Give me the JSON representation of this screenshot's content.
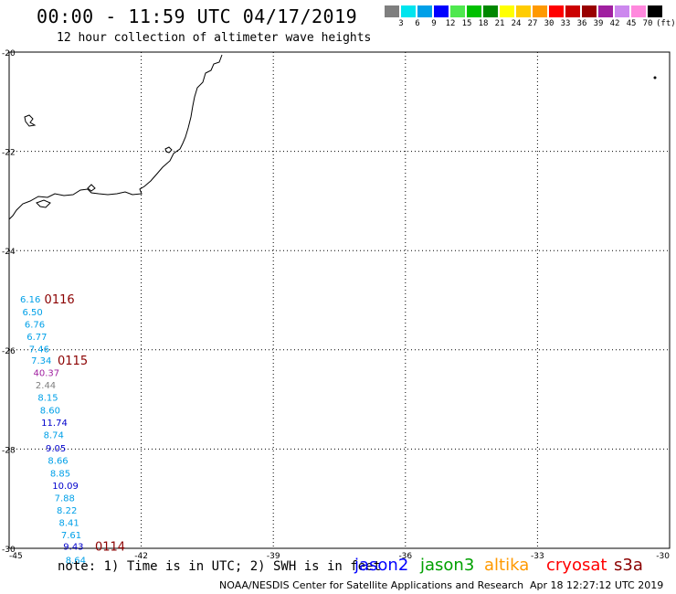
{
  "header": {
    "title": "00:00 - 11:59 UTC 04/17/2019",
    "subtitle": "12 hour collection of altimeter wave heights"
  },
  "legend": {
    "unit": "(ft)",
    "items": [
      {
        "label": "3",
        "color": "#7f7f7f"
      },
      {
        "label": "6",
        "color": "#00e5ee"
      },
      {
        "label": "9",
        "color": "#00a0e8"
      },
      {
        "label": "12",
        "color": "#0000ff"
      },
      {
        "label": "15",
        "color": "#4ee84e"
      },
      {
        "label": "18",
        "color": "#00c000"
      },
      {
        "label": "21",
        "color": "#008800"
      },
      {
        "label": "24",
        "color": "#ffff00"
      },
      {
        "label": "27",
        "color": "#ffcc00"
      },
      {
        "label": "30",
        "color": "#ff9900"
      },
      {
        "label": "33",
        "color": "#ff0000"
      },
      {
        "label": "36",
        "color": "#cc0000"
      },
      {
        "label": "39",
        "color": "#990000"
      },
      {
        "label": "42",
        "color": "#a020a0"
      },
      {
        "label": "45",
        "color": "#cc88ee"
      },
      {
        "label": "70",
        "color": "#ff88dd"
      },
      {
        "label": "",
        "color": "#000000"
      }
    ]
  },
  "axes": {
    "lat_labels": [
      "-20",
      "-22",
      "-24",
      "-26",
      "-28",
      "-30"
    ],
    "lon_labels": [
      "-45",
      "-42",
      "-39",
      "-36",
      "-33",
      "-30"
    ]
  },
  "observations": [
    {
      "lat": -25.05,
      "lon": -44.75,
      "value": "6.16",
      "color": "#00a0e8"
    },
    {
      "lat": -25.3,
      "lon": -44.7,
      "value": "6.50",
      "color": "#00a0e8"
    },
    {
      "lat": -25.55,
      "lon": -44.65,
      "value": "6.76",
      "color": "#00a0e8"
    },
    {
      "lat": -25.8,
      "lon": -44.6,
      "value": "6.77",
      "color": "#00a0e8"
    },
    {
      "lat": -26.05,
      "lon": -44.55,
      "value": "7.46",
      "color": "#00a0e8"
    },
    {
      "lat": -26.28,
      "lon": -44.5,
      "value": "7.34",
      "color": "#00a0e8"
    },
    {
      "lat": -26.53,
      "lon": -44.45,
      "value": "40.37",
      "color": "#a020a0"
    },
    {
      "lat": -26.78,
      "lon": -44.4,
      "value": "2.44",
      "color": "#7f7f7f"
    },
    {
      "lat": -27.03,
      "lon": -44.35,
      "value": "8.15",
      "color": "#00a0e8"
    },
    {
      "lat": -27.28,
      "lon": -44.3,
      "value": "8.60",
      "color": "#00a0e8"
    },
    {
      "lat": -27.53,
      "lon": -44.27,
      "value": "11.74",
      "color": "#0000cc"
    },
    {
      "lat": -27.78,
      "lon": -44.22,
      "value": "8.74",
      "color": "#00a0e8"
    },
    {
      "lat": -28.05,
      "lon": -44.17,
      "value": "9.05",
      "color": "#0000cc"
    },
    {
      "lat": -28.3,
      "lon": -44.12,
      "value": "8.66",
      "color": "#00a0e8"
    },
    {
      "lat": -28.55,
      "lon": -44.07,
      "value": "8.85",
      "color": "#00a0e8"
    },
    {
      "lat": -28.8,
      "lon": -44.02,
      "value": "10.09",
      "color": "#0000cc"
    },
    {
      "lat": -29.05,
      "lon": -43.97,
      "value": "7.88",
      "color": "#00a0e8"
    },
    {
      "lat": -29.3,
      "lon": -43.92,
      "value": "8.22",
      "color": "#00a0e8"
    },
    {
      "lat": -29.55,
      "lon": -43.87,
      "value": "8.41",
      "color": "#00a0e8"
    },
    {
      "lat": -29.8,
      "lon": -43.82,
      "value": "7.61",
      "color": "#00a0e8"
    },
    {
      "lat": -30.03,
      "lon": -43.77,
      "value": "9.43",
      "color": "#0000cc"
    },
    {
      "lat": -30.3,
      "lon": -43.72,
      "value": "8.64",
      "color": "#00a0e8"
    }
  ],
  "time_labels": [
    {
      "lat": -25.05,
      "lon": -44.2,
      "text": "0116",
      "color": "#8b0000"
    },
    {
      "lat": -26.28,
      "lon": -43.9,
      "text": "0115",
      "color": "#8b0000"
    },
    {
      "lat": -30.03,
      "lon": -43.05,
      "text": "0114",
      "color": "#8b0000"
    }
  ],
  "footer": {
    "note": "note: 1) Time is in UTC; 2) SWH is in feet",
    "satellites": [
      {
        "name": "jason2",
        "color": "#0000ff"
      },
      {
        "name": "jason3",
        "color": "#00a000"
      },
      {
        "name": "altika",
        "color": "#ff9900"
      },
      {
        "name": "cryosat",
        "color": "#ff0000"
      },
      {
        "name": "s3a",
        "color": "#8b0000"
      }
    ],
    "credit": "NOAA/NESDIS Center for Satellite Applications and Research",
    "timestamp": "Apr 18 12:27:12 UTC 2019"
  }
}
